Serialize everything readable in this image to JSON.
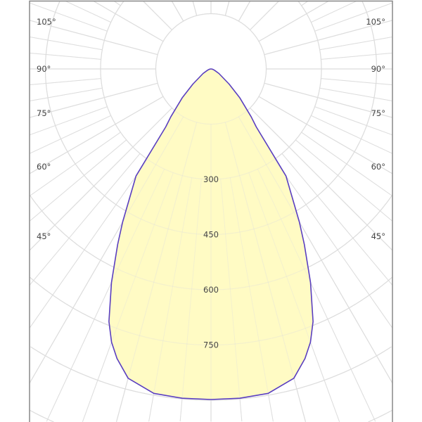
{
  "chart_data": {
    "type": "polar",
    "title": "",
    "unit": "",
    "radial_ticks": [
      150,
      300,
      450,
      600,
      750,
      900,
      1050,
      1200
    ],
    "radial_tick_labels": [
      "300",
      "450",
      "600",
      "750"
    ],
    "angle_labels": [
      "105°",
      "90°",
      "75°",
      "60°",
      "45°"
    ],
    "angle_label_values": [
      105,
      90,
      75,
      60,
      45
    ],
    "grid": true,
    "series": [
      {
        "angles_deg": [
          0,
          5,
          10,
          15,
          18,
          20,
          22,
          25,
          28,
          30,
          35,
          38,
          40,
          45,
          50,
          60,
          70,
          80,
          90
        ],
        "intensity": [
          898,
          898,
          895,
          870,
          827,
          790,
          740,
          640,
          540,
          480,
          355,
          200,
          170,
          110,
          64,
          25,
          10,
          4,
          0
        ],
        "symmetric": true
      }
    ],
    "colors": {
      "fill": "#fffbc4",
      "line": "#5a3fc0",
      "grid": "#dddddd",
      "frame": "#888888"
    }
  }
}
